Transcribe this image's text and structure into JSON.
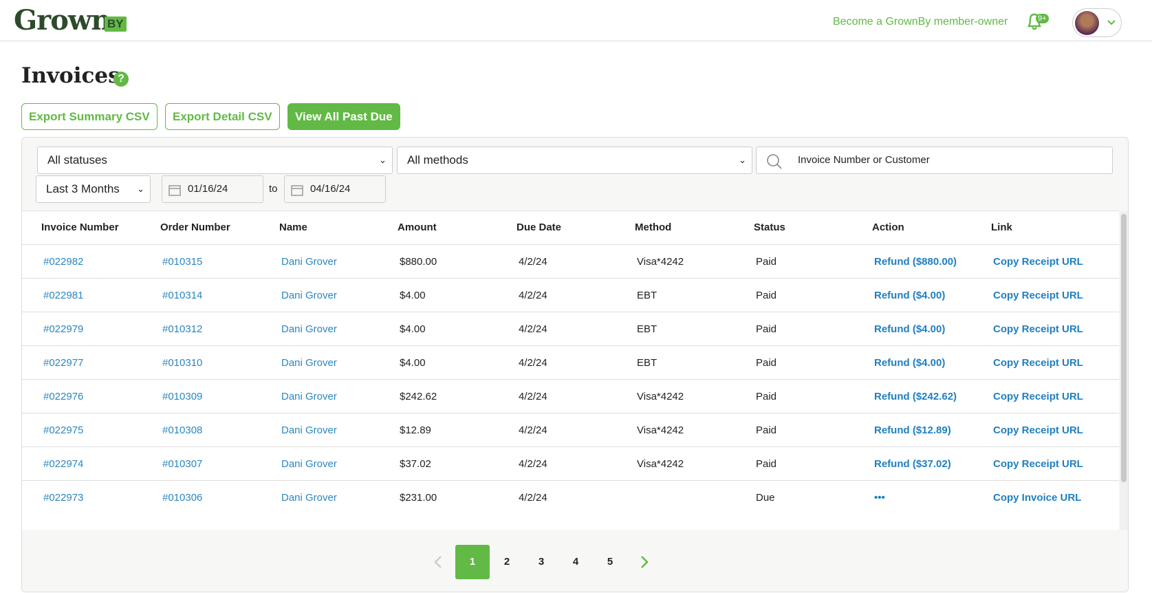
{
  "header": {
    "logo": "Grown",
    "logo_badge": "BY",
    "member_link": "Become a GrownBy member-owner",
    "notification_badge": "9+"
  },
  "page": {
    "title": "Invoices",
    "help_icon": "?"
  },
  "buttons": [
    "Export Summary CSV",
    "Export Detail CSV",
    "View All Past Due"
  ],
  "filters": {
    "status": "All statuses",
    "method": "All methods",
    "search_placeholder": "Invoice Number or Customer",
    "range": "Last 3 Months",
    "start_date": "01/16/24",
    "to": "to",
    "end_date": "04/16/24"
  },
  "table": {
    "columns": [
      "Invoice Number",
      "Order Number",
      "Name",
      "Amount",
      "Due Date",
      "Method",
      "Status",
      "Action",
      "Link"
    ],
    "rows": [
      [
        "#022982",
        "#010315",
        "Dani Grover",
        "$880.00",
        "4/2/24",
        "Visa*4242",
        "Paid",
        "Refund ($880.00)",
        "Copy Receipt URL"
      ],
      [
        "#022981",
        "#010314",
        "Dani Grover",
        "$4.00",
        "4/2/24",
        "EBT",
        "Paid",
        "Refund ($4.00)",
        "Copy Receipt URL"
      ],
      [
        "#022979",
        "#010312",
        "Dani Grover",
        "$4.00",
        "4/2/24",
        "EBT",
        "Paid",
        "Refund ($4.00)",
        "Copy Receipt URL"
      ],
      [
        "#022977",
        "#010310",
        "Dani Grover",
        "$4.00",
        "4/2/24",
        "EBT",
        "Paid",
        "Refund ($4.00)",
        "Copy Receipt URL"
      ],
      [
        "#022976",
        "#010309",
        "Dani Grover",
        "$242.62",
        "4/2/24",
        "Visa*4242",
        "Paid",
        "Refund ($242.62)",
        "Copy Receipt URL"
      ],
      [
        "#022975",
        "#010308",
        "Dani Grover",
        "$12.89",
        "4/2/24",
        "Visa*4242",
        "Paid",
        "Refund ($12.89)",
        "Copy Receipt URL"
      ],
      [
        "#022974",
        "#010307",
        "Dani Grover",
        "$37.02",
        "4/2/24",
        "Visa*4242",
        "Paid",
        "Refund ($37.02)",
        "Copy Receipt URL"
      ],
      [
        "#022973",
        "#010306",
        "Dani Grover",
        "$231.00",
        "4/2/24",
        "",
        "Due",
        "•••",
        "Copy Invoice URL"
      ]
    ]
  },
  "pagination": {
    "pages": [
      1,
      2,
      3,
      4,
      5
    ],
    "current": 1
  }
}
